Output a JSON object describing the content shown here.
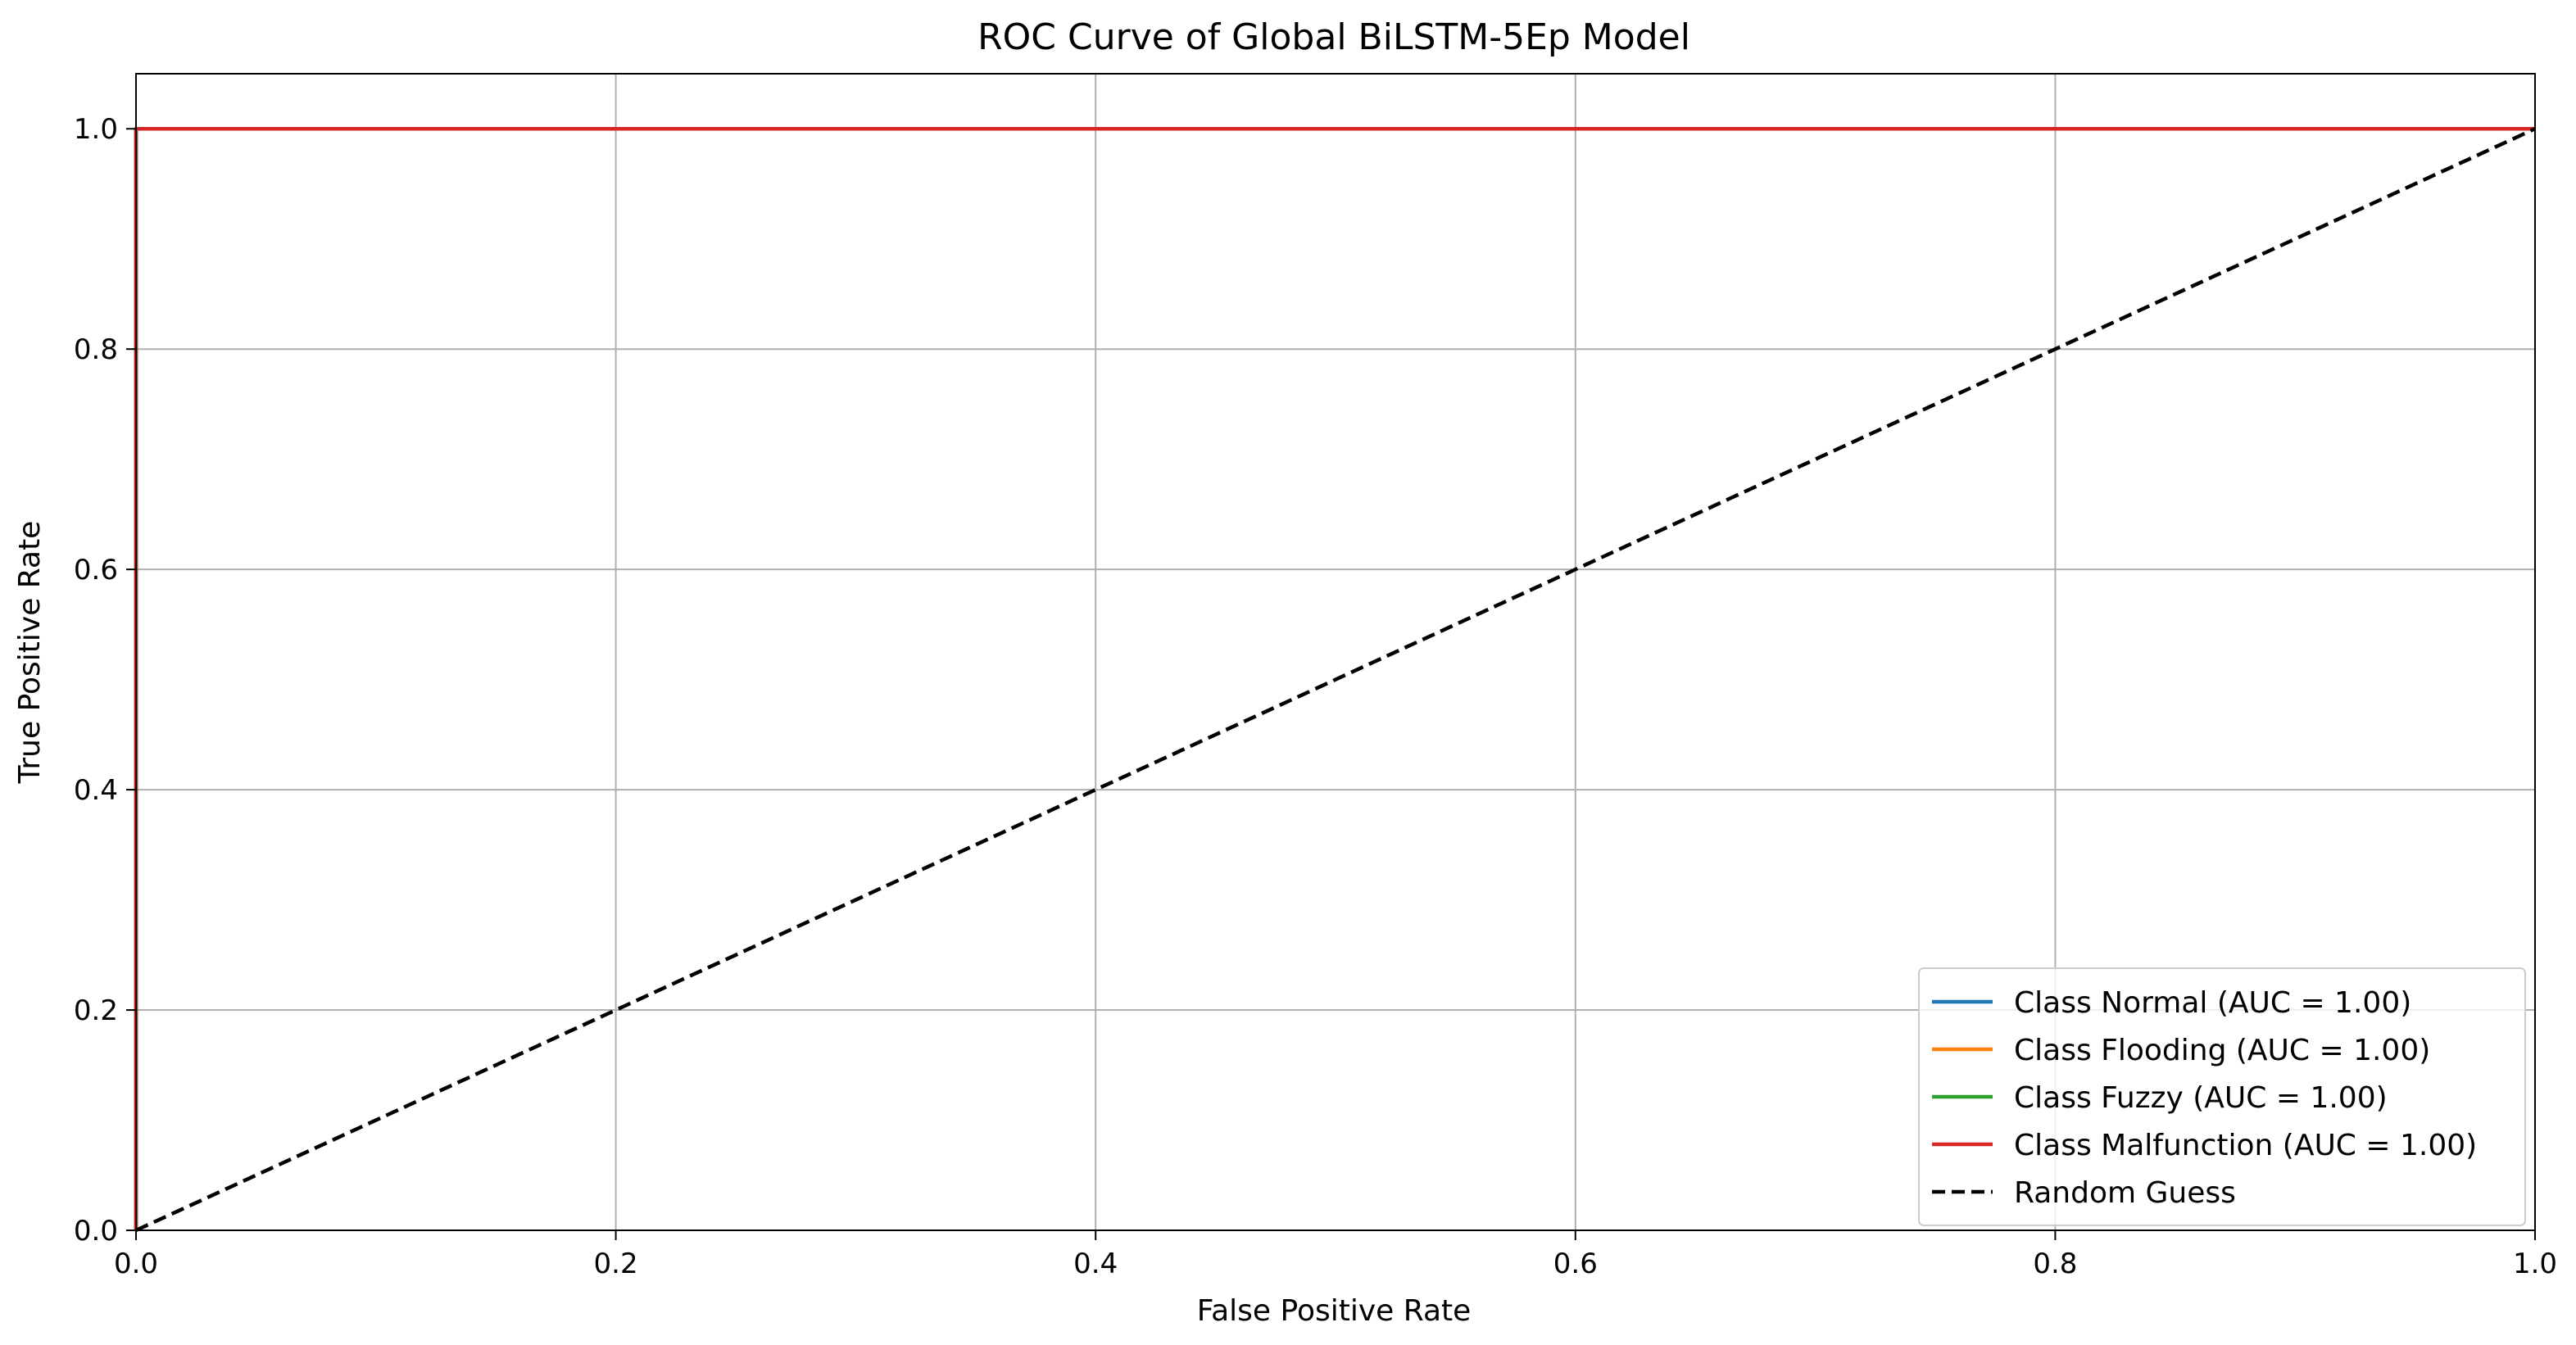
{
  "chart_data": {
    "type": "line",
    "title": "ROC Curve of Global BiLSTM-5Ep Model",
    "xlabel": "False Positive Rate",
    "ylabel": "True Positive Rate",
    "xlim": [
      0.0,
      1.0
    ],
    "ylim": [
      0.0,
      1.05
    ],
    "xticks": [
      0.0,
      0.2,
      0.4,
      0.6,
      0.8,
      1.0
    ],
    "xtick_labels": [
      "0.0",
      "0.2",
      "0.4",
      "0.6",
      "0.8",
      "1.0"
    ],
    "yticks": [
      0.0,
      0.2,
      0.4,
      0.6,
      0.8,
      1.0
    ],
    "ytick_labels": [
      "0.0",
      "0.2",
      "0.4",
      "0.6",
      "0.8",
      "1.0"
    ],
    "grid": true,
    "legend_position": "lower-right",
    "series": [
      {
        "name": "Class Normal (AUC = 1.00)",
        "color": "#1f77b4",
        "style": "solid",
        "x": [
          0.0,
          0.0,
          1.0
        ],
        "y": [
          0.0,
          1.0,
          1.0
        ]
      },
      {
        "name": "Class Flooding (AUC = 1.00)",
        "color": "#ff7f0e",
        "style": "solid",
        "x": [
          0.0,
          0.0,
          1.0
        ],
        "y": [
          0.0,
          1.0,
          1.0
        ]
      },
      {
        "name": "Class Fuzzy (AUC = 1.00)",
        "color": "#2ca02c",
        "style": "solid",
        "x": [
          0.0,
          0.0,
          1.0
        ],
        "y": [
          0.0,
          1.0,
          1.0
        ]
      },
      {
        "name": "Class Malfunction (AUC = 1.00)",
        "color": "#d62728",
        "style": "solid",
        "x": [
          0.0,
          0.0,
          1.0
        ],
        "y": [
          0.0,
          1.0,
          1.0
        ]
      },
      {
        "name": "Random Guess",
        "color": "#000000",
        "style": "dashed",
        "x": [
          0.0,
          1.0
        ],
        "y": [
          0.0,
          1.0
        ]
      }
    ]
  }
}
